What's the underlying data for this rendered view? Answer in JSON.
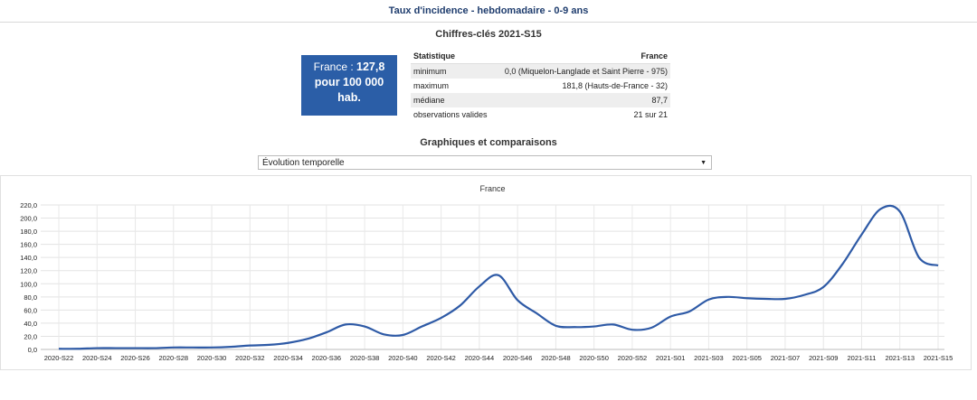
{
  "header": {
    "title": "Taux d'incidence - hebdomadaire - 0-9 ans"
  },
  "key_figures": {
    "title": "Chiffres-clés 2021-S15",
    "box": {
      "prefix": "France : ",
      "value": "127,8",
      "line2": "pour 100 000",
      "line3": "hab."
    },
    "table": {
      "headers": [
        "Statistique",
        "France"
      ],
      "rows": [
        [
          "minimum",
          "0,0 (Miquelon-Langlade et Saint Pierre - 975)"
        ],
        [
          "maximum",
          "181,8 (Hauts-de-France - 32)"
        ],
        [
          "médiane",
          "87,7"
        ],
        [
          "observations valides",
          "21 sur 21"
        ]
      ]
    },
    "colors": {
      "box": "#2b5ea7"
    }
  },
  "comparisons": {
    "title": "Graphiques et comparaisons",
    "select_value": "Évolution temporelle"
  },
  "chart_data": {
    "type": "line",
    "title": "France",
    "color": "#2e5aa6",
    "ylim": [
      0,
      220
    ],
    "yticks": [
      "0,0",
      "20,0",
      "40,0",
      "60,0",
      "80,0",
      "100,0",
      "120,0",
      "140,0",
      "160,0",
      "180,0",
      "200,0",
      "220,0"
    ],
    "x_labels": [
      "2020-S22",
      "2020-S24",
      "2020-S26",
      "2020-S28",
      "2020-S30",
      "2020-S32",
      "2020-S34",
      "2020-S36",
      "2020-S38",
      "2020-S40",
      "2020-S42",
      "2020-S44",
      "2020-S46",
      "2020-S48",
      "2020-S50",
      "2020-S52",
      "2021-S01",
      "2021-S03",
      "2021-S05",
      "2021-S07",
      "2021-S09",
      "2021-S11",
      "2021-S13",
      "2021-S15"
    ],
    "x": [
      "2020-S22",
      "2020-S23",
      "2020-S24",
      "2020-S25",
      "2020-S26",
      "2020-S27",
      "2020-S28",
      "2020-S29",
      "2020-S30",
      "2020-S31",
      "2020-S32",
      "2020-S33",
      "2020-S34",
      "2020-S35",
      "2020-S36",
      "2020-S37",
      "2020-S38",
      "2020-S39",
      "2020-S40",
      "2020-S41",
      "2020-S42",
      "2020-S43",
      "2020-S44",
      "2020-S45",
      "2020-S46",
      "2020-S47",
      "2020-S48",
      "2020-S49",
      "2020-S50",
      "2020-S51",
      "2020-S52",
      "2020-S53",
      "2021-S01",
      "2021-S02",
      "2021-S03",
      "2021-S04",
      "2021-S05",
      "2021-S06",
      "2021-S07",
      "2021-S08",
      "2021-S09",
      "2021-S10",
      "2021-S11",
      "2021-S12",
      "2021-S13",
      "2021-S14",
      "2021-S15"
    ],
    "values": [
      1,
      1,
      2,
      2,
      2,
      2,
      3,
      3,
      3,
      4,
      6,
      7,
      10,
      16,
      26,
      38,
      35,
      23,
      22,
      35,
      48,
      67,
      96,
      113,
      75,
      55,
      36,
      34,
      35,
      38,
      30,
      33,
      50,
      58,
      76,
      80,
      78,
      77,
      77,
      83,
      95,
      130,
      175,
      214,
      210,
      140,
      127.8
    ],
    "grid": true
  }
}
